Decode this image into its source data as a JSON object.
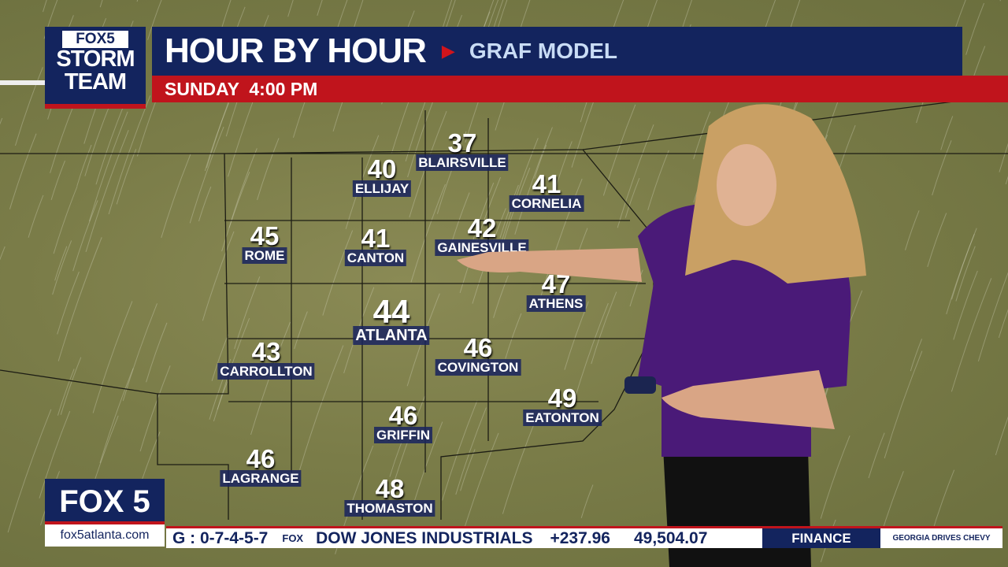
{
  "header": {
    "logo_top": "FOX5",
    "logo_line1": "STORM",
    "logo_line2": "TEAM",
    "title": "HOUR BY HOUR",
    "arrow_icon": "play-arrow",
    "model": "GRAF MODEL",
    "time": "SUNDAY  4:00 PM"
  },
  "cities": [
    {
      "name": "BLAIRSVILLE",
      "temp": "37"
    },
    {
      "name": "ELLIJAY",
      "temp": "40"
    },
    {
      "name": "CORNELIA",
      "temp": "41"
    },
    {
      "name": "ROME",
      "temp": "45"
    },
    {
      "name": "CANTON",
      "temp": "41"
    },
    {
      "name": "GAINESVILLE",
      "temp": "42"
    },
    {
      "name": "ATHENS",
      "temp": "47"
    },
    {
      "name": "ATLANTA",
      "temp": "44"
    },
    {
      "name": "CARROLLTON",
      "temp": "43"
    },
    {
      "name": "COVINGTON",
      "temp": "46"
    },
    {
      "name": "EATONTON",
      "temp": "49"
    },
    {
      "name": "GRIFFIN",
      "temp": "46"
    },
    {
      "name": "LAGRANGE",
      "temp": "46"
    },
    {
      "name": "THOMASTON",
      "temp": "48"
    }
  ],
  "footer": {
    "station": "FOX 5",
    "url": "fox5atlanta.com",
    "ticker_lottery": "G : 0-7-4-5-7",
    "ticker_logo": "FOX",
    "ticker_index": "DOW JONES INDUSTRIALS",
    "ticker_change": "+237.96",
    "ticker_value": "49,504.07",
    "section": "FINANCE",
    "sponsor": "GEORGIA DRIVES CHEVY"
  },
  "colors": {
    "navy": "#13245e",
    "red": "#c0141c"
  }
}
